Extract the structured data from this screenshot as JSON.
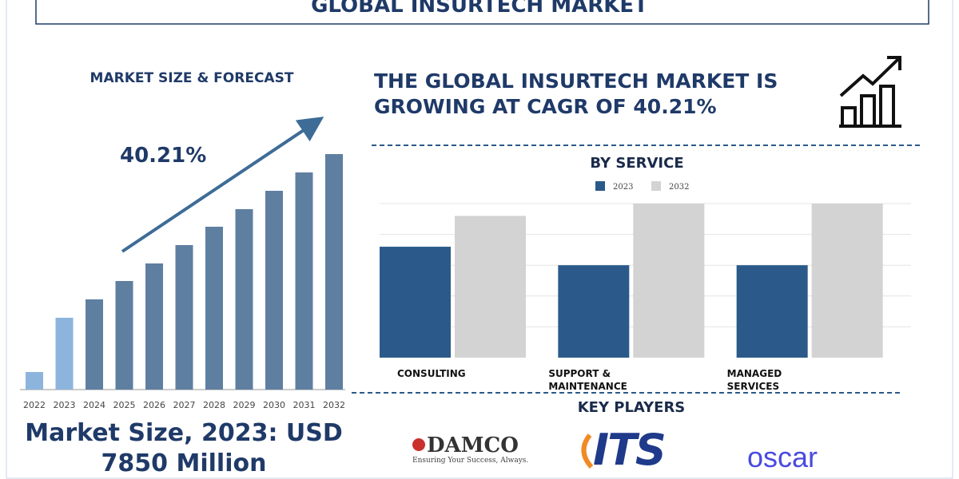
{
  "header": {
    "title": "GLOBAL INSURTECH MARKET"
  },
  "headline": "THE GLOBAL INSURTECH MARKET IS GROWING AT CAGR OF 40.21%",
  "market_size": "Market Size, 2023: USD 7850 Million",
  "key_players": {
    "title": "KEY PLAYERS",
    "logos": [
      {
        "name": "DAMCO",
        "tagline": "Ensuring Your Success, Always."
      },
      {
        "name": "ITS"
      },
      {
        "name": "oscar"
      }
    ]
  },
  "chart_data": [
    {
      "type": "bar",
      "title": "MARKET SIZE & FORECAST",
      "annotation": "40.21%",
      "categories": [
        "2022",
        "2023",
        "2024",
        "2025",
        "2026",
        "2027",
        "2028",
        "2029",
        "2030",
        "2031",
        "2032"
      ],
      "values": [
        22,
        90,
        113,
        136,
        158,
        181,
        204,
        226,
        249,
        272,
        295
      ],
      "colors": [
        "#8db4dc",
        "#8db4dc",
        "#5f7fa1",
        "#5f7fa1",
        "#5f7fa1",
        "#5f7fa1",
        "#5f7fa1",
        "#5f7fa1",
        "#5f7fa1",
        "#5f7fa1",
        "#5f7fa1"
      ]
    },
    {
      "type": "grouped_bar",
      "title": "BY SERVICE",
      "categories": [
        "CONSULTING",
        "SUPPORT & MAINTENANCE",
        "MANAGED SERVICES"
      ],
      "series": [
        {
          "name": "2023",
          "color": "#2b5a8a",
          "values": [
            3.6,
            3.0,
            3.0
          ]
        },
        {
          "name": "2032",
          "color": "#d3d3d3",
          "values": [
            4.6,
            5.0,
            5.0
          ]
        }
      ],
      "ylim": [
        0,
        5
      ],
      "gridlines": [
        1,
        2,
        3,
        4,
        5
      ],
      "grid": true
    }
  ]
}
